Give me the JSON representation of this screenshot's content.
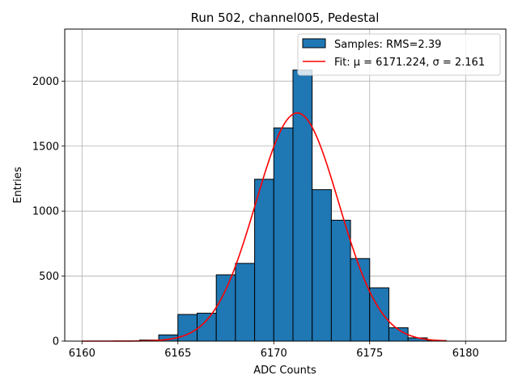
{
  "chart_data": {
    "type": "bar",
    "subtype": "histogram",
    "title": "Run 502, channel005, Pedestal",
    "xlabel": "ADC Counts",
    "ylabel": "Entries",
    "xlim": [
      6159.1,
      6182.1
    ],
    "ylim": [
      0,
      2400
    ],
    "xticks": [
      6160,
      6165,
      6170,
      6175,
      6180
    ],
    "yticks": [
      0,
      500,
      1000,
      1500,
      2000
    ],
    "grid": true,
    "legend_position": "top-right",
    "bins": [
      {
        "x0": 6163,
        "x1": 6164,
        "value": 8
      },
      {
        "x0": 6164,
        "x1": 6165,
        "value": 48
      },
      {
        "x0": 6165,
        "x1": 6166,
        "value": 205
      },
      {
        "x0": 6166,
        "x1": 6167,
        "value": 215
      },
      {
        "x0": 6167,
        "x1": 6168,
        "value": 510
      },
      {
        "x0": 6168,
        "x1": 6169,
        "value": 598
      },
      {
        "x0": 6169,
        "x1": 6170,
        "value": 1245
      },
      {
        "x0": 6170,
        "x1": 6171,
        "value": 1640
      },
      {
        "x0": 6171,
        "x1": 6172,
        "value": 2085
      },
      {
        "x0": 6172,
        "x1": 6173,
        "value": 1165
      },
      {
        "x0": 6173,
        "x1": 6174,
        "value": 930
      },
      {
        "x0": 6174,
        "x1": 6175,
        "value": 635
      },
      {
        "x0": 6175,
        "x1": 6176,
        "value": 410
      },
      {
        "x0": 6176,
        "x1": 6177,
        "value": 103
      },
      {
        "x0": 6177,
        "x1": 6178,
        "value": 25
      },
      {
        "x0": 6178,
        "x1": 6179,
        "value": 4
      }
    ],
    "fit": {
      "mu": 6171.224,
      "sigma": 2.161,
      "amplitude": 1755,
      "x_range": [
        6160,
        6179
      ]
    },
    "series": [
      {
        "name": "Samples: RMS=2.39",
        "kind": "histogram",
        "color": "#1f77b4"
      },
      {
        "name": "Fit: μ = 6171.224, σ = 2.161",
        "kind": "line",
        "color": "#ff0000"
      }
    ]
  }
}
